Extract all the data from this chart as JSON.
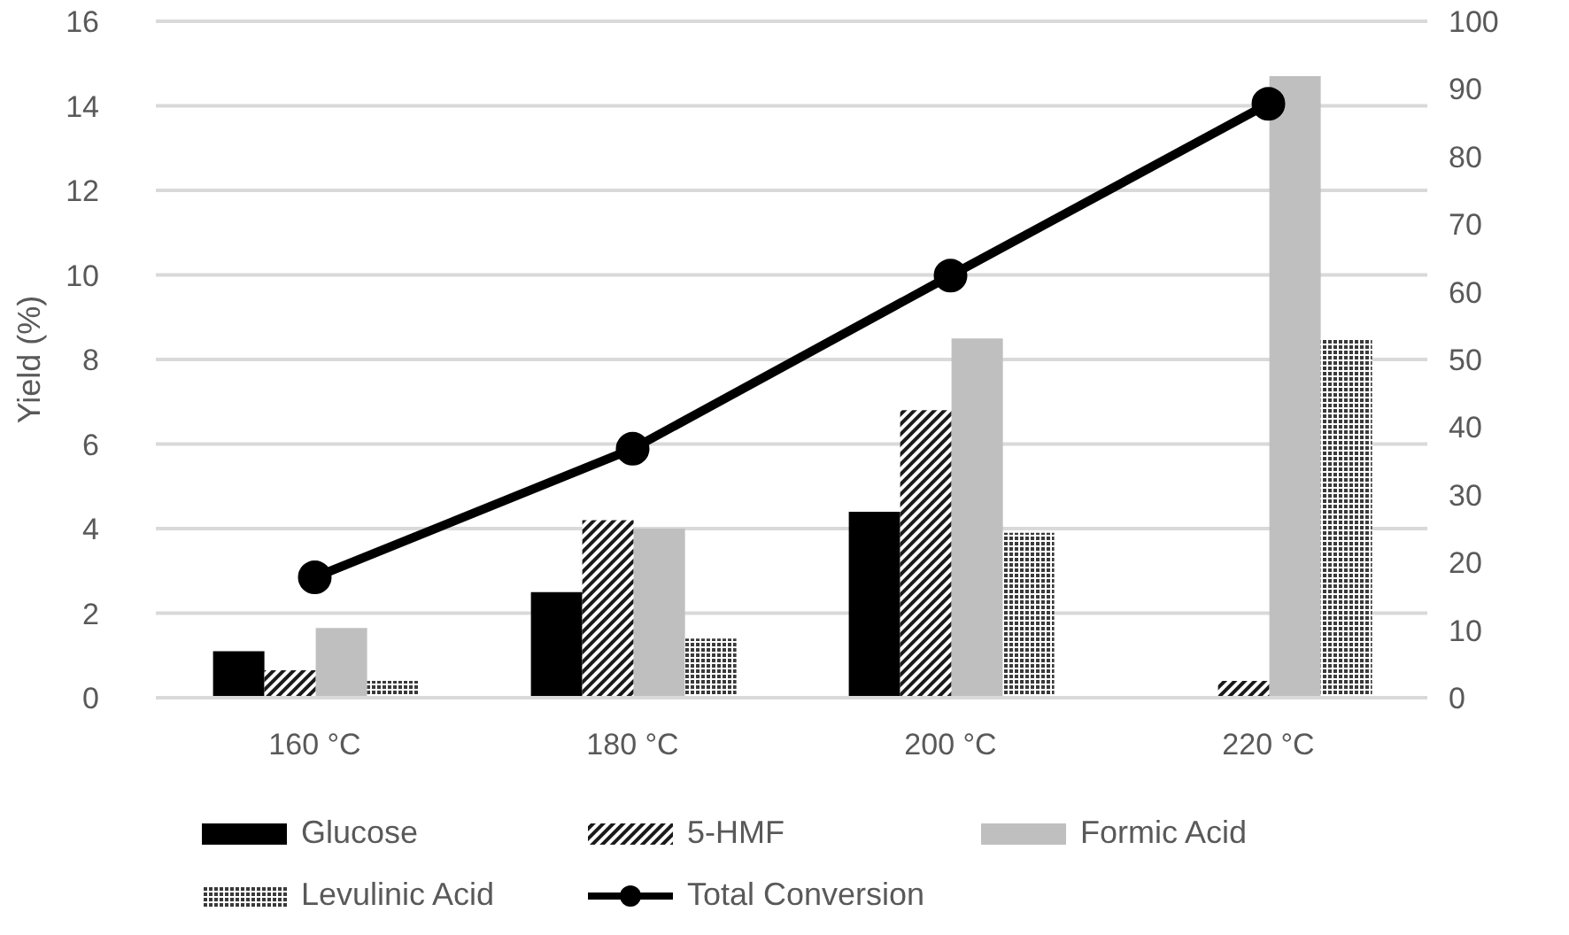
{
  "chart_data": {
    "type": "bar",
    "ylabel": "Yield (%)",
    "categories": [
      "160 °C",
      "180 °C",
      "200 °C",
      "220 °C"
    ],
    "series": [
      {
        "name": "Glucose",
        "color": "#000000",
        "values": [
          1.1,
          2.5,
          4.4,
          0
        ]
      },
      {
        "name": "5-HMF",
        "color": "#1a1a1a",
        "values": [
          0.65,
          4.2,
          6.8,
          0.4
        ]
      },
      {
        "name": "Formic Acid",
        "color": "#bfbfbf",
        "values": [
          1.65,
          4.0,
          8.5,
          14.7
        ]
      },
      {
        "name": "Levulinic Acid",
        "color": "#3a3a3a",
        "values": [
          0.4,
          1.4,
          3.9,
          8.5
        ]
      },
      {
        "name": "Total Conversion",
        "type": "line",
        "axis": "y2",
        "color": "#000000",
        "values": [
          17.8,
          36.8,
          62.4,
          87.8
        ]
      }
    ],
    "ylim": [
      0,
      16
    ],
    "yticks": [
      0,
      2,
      4,
      6,
      8,
      10,
      12,
      14,
      16
    ],
    "y2lim": [
      0,
      100
    ],
    "y2ticks": [
      0,
      10,
      20,
      30,
      40,
      50,
      60,
      70,
      80,
      90,
      100
    ],
    "grid": "y",
    "legend": "bottom",
    "marker": "circle"
  }
}
